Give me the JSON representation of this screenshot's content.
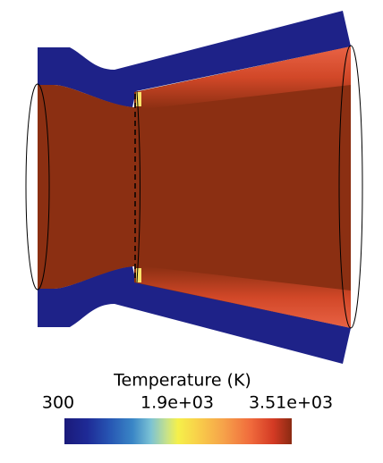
{
  "colorbar": {
    "title": "Temperature (K)",
    "ticks": [
      "300",
      "1.9e+03",
      "3.51e+03"
    ]
  }
}
